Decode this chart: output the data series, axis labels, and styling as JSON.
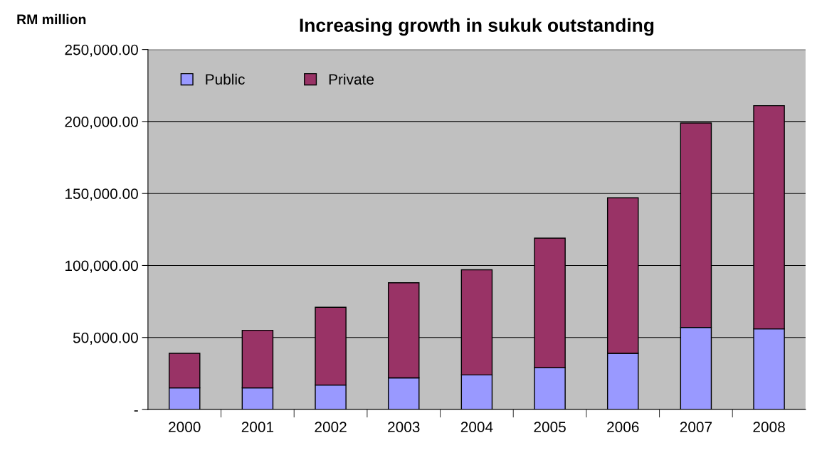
{
  "chart_data": {
    "type": "bar",
    "title": "Increasing growth in sukuk outstanding",
    "ylabel": "RM million",
    "categories": [
      "2000",
      "2001",
      "2002",
      "2003",
      "2004",
      "2005",
      "2006",
      "2007",
      "2008"
    ],
    "stacked": true,
    "series": [
      {
        "name": "Public",
        "color": "#9999ff",
        "values": [
          15000,
          15000,
          17000,
          22000,
          24000,
          29000,
          39000,
          57000,
          56000
        ]
      },
      {
        "name": "Private",
        "color": "#993366",
        "values": [
          24000,
          40000,
          54000,
          66000,
          73000,
          90000,
          108000,
          142000,
          155000
        ]
      }
    ],
    "ylim": [
      0,
      250000
    ],
    "yticks": [
      {
        "value": 0,
        "label": "-"
      },
      {
        "value": 50000,
        "label": "50,000.00"
      },
      {
        "value": 100000,
        "label": "100,000.00"
      },
      {
        "value": 150000,
        "label": "150,000.00"
      },
      {
        "value": 200000,
        "label": "200,000.00"
      },
      {
        "value": 250000,
        "label": "250,000.00"
      }
    ],
    "grid": "y",
    "legend": "top left"
  }
}
